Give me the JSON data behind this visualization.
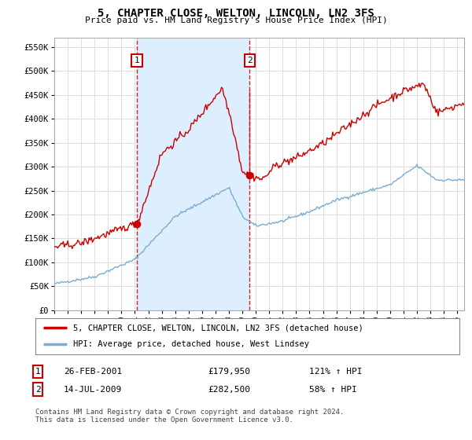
{
  "title": "5, CHAPTER CLOSE, WELTON, LINCOLN, LN2 3FS",
  "subtitle": "Price paid vs. HM Land Registry's House Price Index (HPI)",
  "xlim_start": 1995.0,
  "xlim_end": 2025.5,
  "ylim": [
    0,
    570000
  ],
  "yticks": [
    0,
    50000,
    100000,
    150000,
    200000,
    250000,
    300000,
    350000,
    400000,
    450000,
    500000,
    550000
  ],
  "ytick_labels": [
    "£0",
    "£50K",
    "£100K",
    "£150K",
    "£200K",
    "£250K",
    "£300K",
    "£350K",
    "£400K",
    "£450K",
    "£500K",
    "£550K"
  ],
  "sale1_date": 2001.15,
  "sale1_price": 179950,
  "sale2_date": 2009.54,
  "sale2_price": 282500,
  "sale1_label": "1",
  "sale2_label": "2",
  "legend_line1": "5, CHAPTER CLOSE, WELTON, LINCOLN, LN2 3FS (detached house)",
  "legend_line2": "HPI: Average price, detached house, West Lindsey",
  "footnote": "Contains HM Land Registry data © Crown copyright and database right 2024.\nThis data is licensed under the Open Government Licence v3.0.",
  "line_color_red": "#cc0000",
  "line_color_blue": "#7aadd4",
  "vline_color": "#cc0000",
  "shade_color": "#ddeeff",
  "background_color": "#ffffff",
  "grid_color": "#dddddd",
  "xtick_years": [
    1995,
    1996,
    1997,
    1998,
    1999,
    2000,
    2001,
    2002,
    2003,
    2004,
    2005,
    2006,
    2007,
    2008,
    2009,
    2010,
    2011,
    2012,
    2013,
    2014,
    2015,
    2016,
    2017,
    2018,
    2019,
    2020,
    2021,
    2022,
    2023,
    2024,
    2025
  ]
}
